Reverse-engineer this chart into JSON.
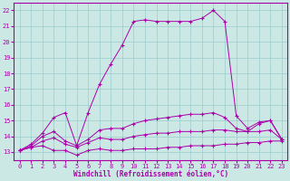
{
  "xlabel": "Windchill (Refroidissement éolien,°C)",
  "bg_color": "#cce8e4",
  "line_color": "#aa00aa",
  "grid_color": "#99cccc",
  "xlim": [
    -0.5,
    23.5
  ],
  "ylim": [
    12.5,
    22.5
  ],
  "xticks": [
    0,
    1,
    2,
    3,
    4,
    5,
    6,
    7,
    8,
    9,
    10,
    11,
    12,
    13,
    14,
    15,
    16,
    17,
    18,
    19,
    20,
    21,
    22,
    23
  ],
  "yticks": [
    13,
    14,
    15,
    16,
    17,
    18,
    19,
    20,
    21,
    22
  ],
  "series": [
    {
      "x": [
        0,
        1,
        2,
        3,
        4,
        5,
        6,
        7,
        8,
        9,
        10,
        11,
        12,
        13,
        14,
        15,
        16,
        17,
        18,
        19,
        20,
        21,
        22,
        23
      ],
      "y": [
        13.1,
        13.3,
        13.4,
        13.1,
        13.1,
        12.8,
        13.1,
        13.2,
        13.1,
        13.1,
        13.2,
        13.2,
        13.2,
        13.3,
        13.3,
        13.4,
        13.4,
        13.4,
        13.5,
        13.5,
        13.6,
        13.6,
        13.7,
        13.7
      ]
    },
    {
      "x": [
        0,
        1,
        2,
        3,
        4,
        5,
        6,
        7,
        8,
        9,
        10,
        11,
        12,
        13,
        14,
        15,
        16,
        17,
        18,
        19,
        20,
        21,
        22,
        23
      ],
      "y": [
        13.1,
        13.3,
        13.7,
        13.9,
        13.5,
        13.3,
        13.6,
        13.9,
        13.8,
        13.8,
        14.0,
        14.1,
        14.2,
        14.2,
        14.3,
        14.3,
        14.3,
        14.4,
        14.4,
        14.3,
        14.3,
        14.3,
        14.4,
        13.8
      ]
    },
    {
      "x": [
        0,
        1,
        2,
        3,
        4,
        5,
        6,
        7,
        8,
        9,
        10,
        11,
        12,
        13,
        14,
        15,
        16,
        17,
        18,
        19,
        20,
        21,
        22,
        23
      ],
      "y": [
        13.1,
        13.4,
        14.0,
        14.3,
        13.7,
        13.4,
        13.8,
        14.4,
        14.5,
        14.5,
        14.8,
        15.0,
        15.1,
        15.2,
        15.3,
        15.4,
        15.4,
        15.5,
        15.2,
        14.5,
        14.3,
        14.8,
        15.0,
        13.8
      ]
    },
    {
      "x": [
        0,
        1,
        2,
        3,
        4,
        5,
        6,
        7,
        8,
        9,
        10,
        11,
        12,
        13,
        14,
        15,
        16,
        17,
        18,
        19,
        20,
        21,
        22,
        23
      ],
      "y": [
        13.1,
        13.5,
        14.2,
        15.2,
        15.5,
        13.4,
        15.5,
        17.3,
        18.6,
        19.8,
        21.3,
        21.4,
        21.3,
        21.3,
        21.3,
        21.3,
        21.5,
        22.0,
        21.3,
        15.3,
        14.5,
        14.9,
        15.0,
        13.8
      ]
    }
  ]
}
